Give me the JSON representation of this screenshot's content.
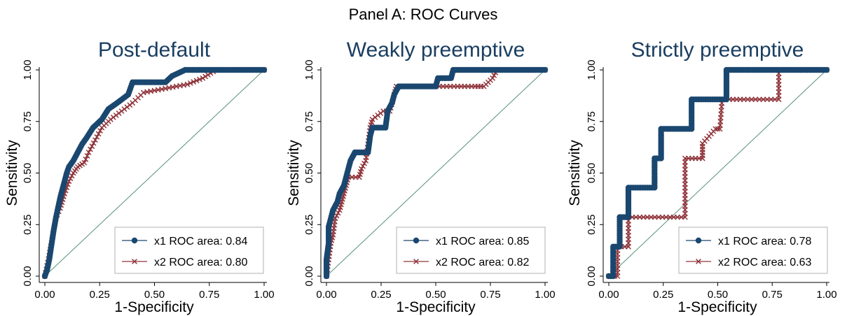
{
  "figure": {
    "suptitle": "Panel A: ROC Curves"
  },
  "colors": {
    "x1": "#1a476f",
    "x2": "#90353b",
    "reference": "#55907a",
    "axis": "#000000",
    "title": "#1a3e60",
    "legend_border": "#b0b0b0"
  },
  "chart_data": [
    {
      "type": "line",
      "title": "Post-default",
      "xlabel": "1-Specificity",
      "ylabel": "Sensitivity",
      "xlim": [
        0,
        1
      ],
      "ylim": [
        0,
        1
      ],
      "x_ticks": [
        "0.00",
        "0.25",
        "0.50",
        "0.75",
        "1.00"
      ],
      "y_ticks": [
        "0.00",
        "0.25",
        "0.50",
        "0.75",
        "1.00"
      ],
      "grid": false,
      "legend_position": "bottom-right",
      "reference_line": [
        [
          0,
          0
        ],
        [
          1,
          1
        ]
      ],
      "series": [
        {
          "name": "x1 ROC area: 0.84",
          "marker": "circle",
          "points": [
            [
              0,
              0
            ],
            [
              0.01,
              0.03
            ],
            [
              0.02,
              0.08
            ],
            [
              0.03,
              0.15
            ],
            [
              0.04,
              0.22
            ],
            [
              0.05,
              0.28
            ],
            [
              0.06,
              0.33
            ],
            [
              0.07,
              0.38
            ],
            [
              0.08,
              0.42
            ],
            [
              0.09,
              0.46
            ],
            [
              0.1,
              0.5
            ],
            [
              0.11,
              0.53
            ],
            [
              0.13,
              0.56
            ],
            [
              0.15,
              0.6
            ],
            [
              0.17,
              0.64
            ],
            [
              0.19,
              0.67
            ],
            [
              0.22,
              0.72
            ],
            [
              0.26,
              0.76
            ],
            [
              0.29,
              0.81
            ],
            [
              0.33,
              0.84
            ],
            [
              0.38,
              0.88
            ],
            [
              0.4,
              0.94
            ],
            [
              0.55,
              0.94
            ],
            [
              0.58,
              0.97
            ],
            [
              0.64,
              1.0
            ],
            [
              1.0,
              1.0
            ]
          ]
        },
        {
          "name": "x2 ROC area: 0.80",
          "marker": "x",
          "points": [
            [
              0,
              0
            ],
            [
              0.01,
              0.05
            ],
            [
              0.02,
              0.1
            ],
            [
              0.03,
              0.16
            ],
            [
              0.04,
              0.22
            ],
            [
              0.05,
              0.28
            ],
            [
              0.07,
              0.33
            ],
            [
              0.09,
              0.4
            ],
            [
              0.11,
              0.46
            ],
            [
              0.13,
              0.5
            ],
            [
              0.15,
              0.53
            ],
            [
              0.18,
              0.55
            ],
            [
              0.2,
              0.6
            ],
            [
              0.23,
              0.66
            ],
            [
              0.26,
              0.72
            ],
            [
              0.3,
              0.76
            ],
            [
              0.35,
              0.8
            ],
            [
              0.4,
              0.84
            ],
            [
              0.45,
              0.89
            ],
            [
              0.55,
              0.91
            ],
            [
              0.65,
              0.93
            ],
            [
              0.72,
              0.96
            ],
            [
              0.78,
              1.0
            ],
            [
              1.0,
              1.0
            ]
          ]
        }
      ]
    },
    {
      "type": "line",
      "title": "Weakly preemptive",
      "xlabel": "1-Specificity",
      "ylabel": "Sensitivity",
      "xlim": [
        0,
        1
      ],
      "ylim": [
        0,
        1
      ],
      "x_ticks": [
        "0.00",
        "0.25",
        "0.50",
        "0.75",
        "1.00"
      ],
      "y_ticks": [
        "0.00",
        "0.25",
        "0.50",
        "0.75",
        "1.00"
      ],
      "grid": false,
      "legend_position": "bottom-right",
      "reference_line": [
        [
          0,
          0
        ],
        [
          1,
          1
        ]
      ],
      "series": [
        {
          "name": "x1 ROC area: 0.85",
          "marker": "circle",
          "points": [
            [
              0,
              0
            ],
            [
              0,
              0.08
            ],
            [
              0.01,
              0.16
            ],
            [
              0.01,
              0.24
            ],
            [
              0.02,
              0.28
            ],
            [
              0.03,
              0.32
            ],
            [
              0.05,
              0.36
            ],
            [
              0.06,
              0.4
            ],
            [
              0.08,
              0.44
            ],
            [
              0.09,
              0.48
            ],
            [
              0.1,
              0.52
            ],
            [
              0.11,
              0.56
            ],
            [
              0.13,
              0.6
            ],
            [
              0.19,
              0.6
            ],
            [
              0.2,
              0.68
            ],
            [
              0.21,
              0.72
            ],
            [
              0.27,
              0.72
            ],
            [
              0.28,
              0.8
            ],
            [
              0.3,
              0.84
            ],
            [
              0.31,
              0.88
            ],
            [
              0.33,
              0.92
            ],
            [
              0.5,
              0.92
            ],
            [
              0.51,
              0.96
            ],
            [
              0.57,
              0.96
            ],
            [
              0.58,
              1.0
            ],
            [
              1.0,
              1.0
            ]
          ]
        },
        {
          "name": "x2 ROC area: 0.82",
          "marker": "x",
          "points": [
            [
              0,
              0
            ],
            [
              0.01,
              0.08
            ],
            [
              0.02,
              0.16
            ],
            [
              0.03,
              0.2
            ],
            [
              0.04,
              0.28
            ],
            [
              0.06,
              0.32
            ],
            [
              0.07,
              0.36
            ],
            [
              0.08,
              0.4
            ],
            [
              0.09,
              0.44
            ],
            [
              0.1,
              0.48
            ],
            [
              0.15,
              0.48
            ],
            [
              0.16,
              0.52
            ],
            [
              0.18,
              0.56
            ],
            [
              0.19,
              0.64
            ],
            [
              0.2,
              0.72
            ],
            [
              0.21,
              0.76
            ],
            [
              0.26,
              0.8
            ],
            [
              0.29,
              0.8
            ],
            [
              0.31,
              0.88
            ],
            [
              0.32,
              0.92
            ],
            [
              0.5,
              0.92
            ],
            [
              0.6,
              0.92
            ],
            [
              0.68,
              0.92
            ],
            [
              0.72,
              0.92
            ],
            [
              0.76,
              0.96
            ],
            [
              0.78,
              1.0
            ],
            [
              1.0,
              1.0
            ]
          ]
        }
      ]
    },
    {
      "type": "line",
      "title": "Strictly preemptive",
      "xlabel": "1-Specificity",
      "ylabel": "Sensitivity",
      "xlim": [
        0,
        1
      ],
      "ylim": [
        0,
        1
      ],
      "x_ticks": [
        "0.00",
        "0.25",
        "0.50",
        "0.75",
        "1.00"
      ],
      "y_ticks": [
        "0.00",
        "0.25",
        "0.50",
        "0.75",
        "1.00"
      ],
      "grid": false,
      "legend_position": "bottom-right",
      "reference_line": [
        [
          0,
          0
        ],
        [
          1,
          1
        ]
      ],
      "series": [
        {
          "name": "x1 ROC area: 0.78",
          "marker": "circle",
          "points": [
            [
              0,
              0
            ],
            [
              0.02,
              0
            ],
            [
              0.02,
              0.143
            ],
            [
              0.05,
              0.143
            ],
            [
              0.05,
              0.286
            ],
            [
              0.09,
              0.286
            ],
            [
              0.09,
              0.429
            ],
            [
              0.21,
              0.429
            ],
            [
              0.21,
              0.571
            ],
            [
              0.24,
              0.571
            ],
            [
              0.24,
              0.714
            ],
            [
              0.38,
              0.714
            ],
            [
              0.38,
              0.857
            ],
            [
              0.54,
              0.857
            ],
            [
              0.54,
              1.0
            ],
            [
              1.0,
              1.0
            ]
          ]
        },
        {
          "name": "x2 ROC area: 0.63",
          "marker": "x",
          "points": [
            [
              0,
              0
            ],
            [
              0.04,
              0
            ],
            [
              0.04,
              0.143
            ],
            [
              0.09,
              0.143
            ],
            [
              0.09,
              0.286
            ],
            [
              0.35,
              0.286
            ],
            [
              0.35,
              0.571
            ],
            [
              0.43,
              0.571
            ],
            [
              0.43,
              0.643
            ],
            [
              0.49,
              0.714
            ],
            [
              0.51,
              0.714
            ],
            [
              0.52,
              0.857
            ],
            [
              0.62,
              0.857
            ],
            [
              0.78,
              0.857
            ],
            [
              0.78,
              1.0
            ],
            [
              1.0,
              1.0
            ]
          ]
        }
      ]
    }
  ]
}
